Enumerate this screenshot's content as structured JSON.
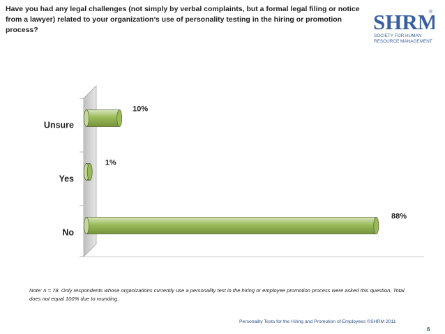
{
  "question": "Have you had any legal challenges (not simply by verbal complaints, but a formal legal filing or notice from a lawyer) related to your organization’s use of personality testing in the hiring or promotion process?",
  "logo": {
    "wordmark": "SHRM",
    "line1": "SOCIETY FOR HUMAN",
    "line2": "RESOURCE MANAGEMENT",
    "mark": "®"
  },
  "colors": {
    "bar_fill": "#9bbb59",
    "bar_fill_light": "#c3d69b",
    "bar_stroke": "#4f6228",
    "wall": "#d9d9d9",
    "footer_text": "#2b4f8a",
    "logo_blue": "#3a5f9e"
  },
  "chart_data": {
    "type": "bar",
    "orientation": "horizontal",
    "categories": [
      "Unsure",
      "Yes",
      "No"
    ],
    "values": [
      10,
      1,
      88
    ],
    "value_labels": [
      "10%",
      "1%",
      "88%"
    ],
    "unit": "%",
    "xlim": [
      0,
      100
    ],
    "title": "",
    "xlabel": "",
    "ylabel": "",
    "grid": false,
    "legend": "none"
  },
  "note": "Note: n = 78. Only respondents whose organizations currently use a personality test in the hiring or employee promotion process were asked this question. Total does not equal 100% due to rounding.",
  "footer": "Personality Tests for the Hiring and Promotion of Employees ©SHRM 2011",
  "page_number": "6"
}
